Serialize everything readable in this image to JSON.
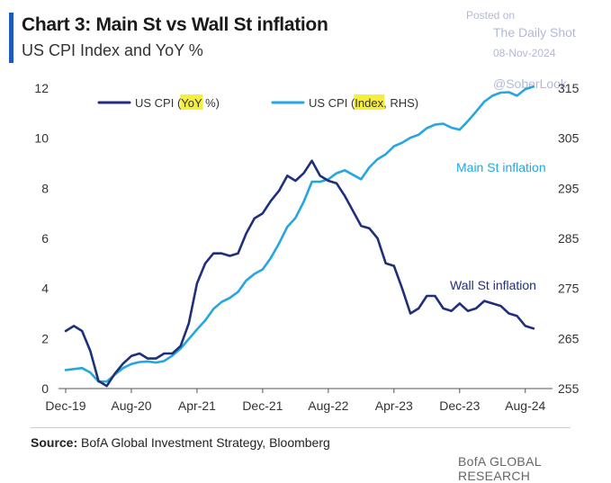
{
  "header": {
    "title": "Chart 3: Main St vs Wall St inflation",
    "subtitle": "US CPI Index and YoY %"
  },
  "watermark": {
    "posted": "Posted on",
    "site": "The Daily Shot",
    "date": "08-Nov-2024",
    "handle": "@SoberLook"
  },
  "colors": {
    "yoy": "#1f2f7a",
    "index": "#26a6e0",
    "highlight": "#f5ef3a",
    "axis": "#555555"
  },
  "chart_data": {
    "type": "line",
    "title": "Chart 3: Main St vs Wall St inflation",
    "subtitle": "US CPI Index and YoY %",
    "legend_position": "top",
    "legend": [
      {
        "pre": "US CPI (",
        "hl": "YoY",
        "post": " %)"
      },
      {
        "pre": "US CPI (",
        "hl": "Index",
        "post": ", RHS)"
      }
    ],
    "x_tick_labels": [
      "Dec-19",
      "Aug-20",
      "Apr-21",
      "Dec-21",
      "Aug-22",
      "Apr-23",
      "Dec-23",
      "Aug-24"
    ],
    "x_tick_month_index": [
      0,
      8,
      16,
      24,
      32,
      40,
      48,
      56
    ],
    "y_left": {
      "min": 0,
      "max": 12,
      "ticks": [
        0,
        2,
        4,
        6,
        8,
        10,
        12
      ]
    },
    "y_right": {
      "min": 255,
      "max": 315,
      "ticks": [
        255,
        265,
        275,
        285,
        295,
        305,
        315
      ]
    },
    "annotations": [
      {
        "text": "Main St inflation",
        "series": "index"
      },
      {
        "text": "Wall St inflation",
        "series": "yoy"
      }
    ],
    "series": [
      {
        "name": "US CPI (YoY %)",
        "axis": "left",
        "start_month_index": 0,
        "values": [
          2.3,
          2.5,
          2.3,
          1.5,
          0.3,
          0.1,
          0.6,
          1.0,
          1.3,
          1.4,
          1.2,
          1.2,
          1.4,
          1.4,
          1.7,
          2.6,
          4.2,
          5.0,
          5.4,
          5.4,
          5.3,
          5.4,
          6.2,
          6.8,
          7.0,
          7.5,
          7.9,
          8.5,
          8.3,
          8.6,
          9.1,
          8.5,
          8.3,
          8.2,
          7.7,
          7.1,
          6.5,
          6.4,
          6.0,
          5.0,
          4.9,
          4.0,
          3.0,
          3.2,
          3.7,
          3.7,
          3.2,
          3.1,
          3.4,
          3.1,
          3.2,
          3.5,
          3.4,
          3.3,
          3.0,
          2.9,
          2.5,
          2.4
        ]
      },
      {
        "name": "US CPI (Index, RHS)",
        "axis": "right",
        "start_month_index": 0,
        "values": [
          258.7,
          258.9,
          259.1,
          258.2,
          256.4,
          256.4,
          257.8,
          259.1,
          259.9,
          260.3,
          260.4,
          260.2,
          260.5,
          261.6,
          263.0,
          264.9,
          266.8,
          268.6,
          270.9,
          272.3,
          273.1,
          274.3,
          276.6,
          277.9,
          278.8,
          281.1,
          284.0,
          287.3,
          289.1,
          292.3,
          296.3,
          296.3,
          296.8,
          298.0,
          298.6,
          297.7,
          296.8,
          299.2,
          300.8,
          301.8,
          303.4,
          304.1,
          305.1,
          305.7,
          307.0,
          307.7,
          307.9,
          307.1,
          306.7,
          308.4,
          310.3,
          312.3,
          313.5,
          314.1,
          314.2,
          313.5,
          314.8,
          315.3
        ]
      }
    ]
  },
  "source": {
    "label": "Source:",
    "text": " BofA Global Investment Strategy, Bloomberg"
  },
  "footer": "BofA GLOBAL RESEARCH"
}
